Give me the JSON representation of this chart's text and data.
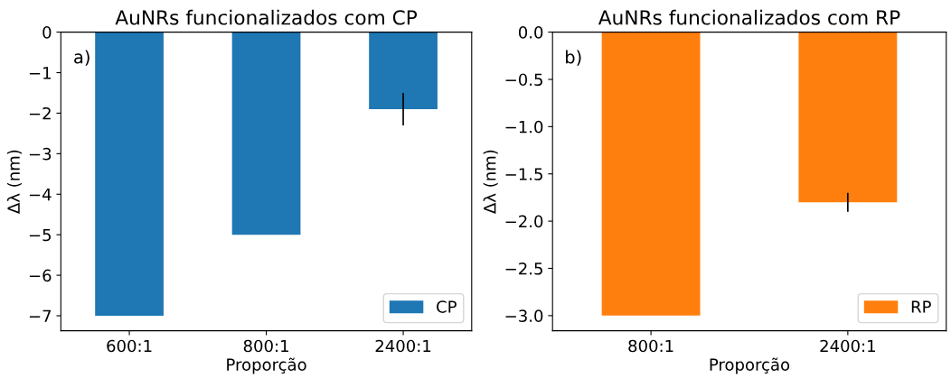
{
  "chart_data": [
    {
      "type": "bar",
      "title": "AuNRs funcionalizados com CP",
      "xlabel": "Proporção",
      "ylabel": "Δλ (nm)",
      "categories": [
        "600:1",
        "800:1",
        "2400:1"
      ],
      "series": [
        {
          "name": "CP",
          "color": "#1f77b4",
          "values": [
            -7,
            -5,
            -1.9
          ],
          "errors": [
            null,
            null,
            0.4
          ]
        }
      ],
      "ylim": [
        -7.37,
        0
      ],
      "yticks": [
        0,
        {
          "value": -1,
          "label": "−1"
        },
        {
          "value": -2,
          "label": "−2"
        },
        {
          "value": -3,
          "label": "−3"
        },
        {
          "value": -4,
          "label": "−4"
        },
        {
          "value": -5,
          "label": "−5"
        },
        {
          "value": -6,
          "label": "−6"
        },
        {
          "value": -7,
          "label": "−7"
        }
      ],
      "legend": "bottom right",
      "annotations": [
        "a)"
      ]
    },
    {
      "type": "bar",
      "title": "AuNRs funcionalizados com RP",
      "xlabel": "Proporção",
      "ylabel": "Δλ (nm)",
      "categories": [
        "800:1",
        "2400:1"
      ],
      "series": [
        {
          "name": "RP",
          "color": "#ff7f0e",
          "values": [
            -3,
            -1.8
          ],
          "errors": [
            null,
            0.1
          ]
        }
      ],
      "ylim": [
        -3.16,
        0
      ],
      "yticks": [
        {
          "value": 0,
          "label": "0.0"
        },
        {
          "value": -0.5,
          "label": "−0.5"
        },
        {
          "value": -1,
          "label": "−1.0"
        },
        {
          "value": -1.5,
          "label": "−1.5"
        },
        {
          "value": -2,
          "label": "−2.0"
        },
        {
          "value": -2.5,
          "label": "−2.5"
        },
        {
          "value": -3,
          "label": "−3.0"
        }
      ],
      "legend": "bottom right",
      "annotations": [
        "b)"
      ]
    }
  ]
}
